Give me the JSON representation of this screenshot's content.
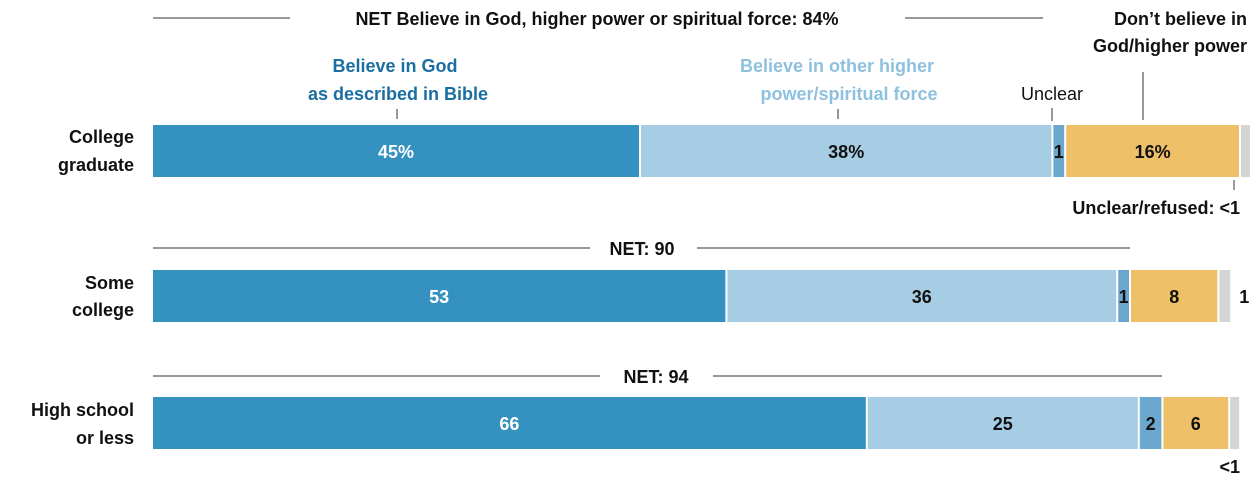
{
  "chart_data": {
    "type": "bar",
    "stacked": true,
    "orientation": "horizontal",
    "xlim": [
      0,
      100
    ],
    "grid": false,
    "legend": "direct labels above first bar",
    "categories": [
      {
        "line1": "College",
        "line2": "graduate"
      },
      {
        "line1": "Some",
        "line2": "college"
      },
      {
        "line1": "High school",
        "line2": "or less"
      }
    ],
    "series": [
      {
        "name_line1": "Believe in God",
        "name_line2": "as described in Bible",
        "color": "#3591c0",
        "name_color": "#1a6fa0",
        "values": [
          45,
          53,
          66
        ],
        "labels": [
          "45%",
          "53",
          "66"
        ]
      },
      {
        "name_line1": "Believe in other higher",
        "name_line2": "power/spiritual force",
        "color": "#a6cde3",
        "name_color": "#8ec1df",
        "values": [
          38,
          36,
          25
        ],
        "labels": [
          "38%",
          "36",
          "25"
        ]
      },
      {
        "name": "Unclear",
        "color": "#6ca7cf",
        "values": [
          1,
          1,
          2
        ],
        "labels": [
          "1",
          "1",
          "2"
        ]
      },
      {
        "name_line1": "Don’t believe in",
        "name_line2": "God/higher power",
        "color": "#eec068",
        "values": [
          16,
          8,
          6
        ],
        "labels": [
          "16%",
          "8",
          "6"
        ]
      },
      {
        "name": "Unclear/refused",
        "color": "#d4d4d4",
        "values": [
          0.4,
          1,
          0.4
        ],
        "labels": [
          "<1",
          "1",
          "<1"
        ]
      }
    ],
    "net_labels": [
      "NET Believe in God, higher power or spiritual force: 84%",
      "NET: 90",
      "NET: 94"
    ],
    "unclear_refused_label": "Unclear/refused: <1"
  }
}
